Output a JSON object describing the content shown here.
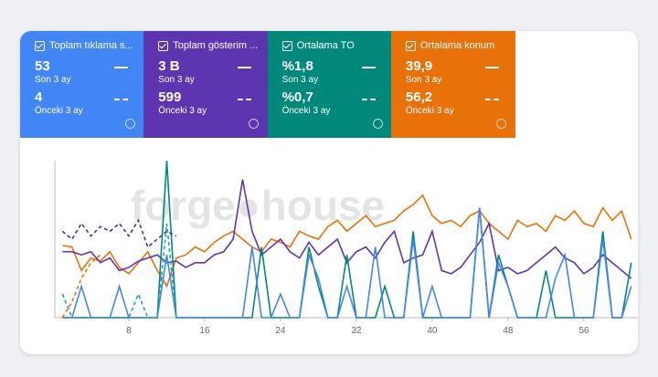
{
  "cards": [
    {
      "title": "Toplam tıklama s...",
      "value": "53",
      "period": "Son 3 ay",
      "prev_value": "4",
      "prev_period": "Önceki 3 ay",
      "color": "#4285f4"
    },
    {
      "title": "Toplam gösterim ...",
      "value": "3 B",
      "period": "Son 3 ay",
      "prev_value": "599",
      "prev_period": "Önceki 3 ay",
      "color": "#5e35b1"
    },
    {
      "title": "Ortalama TO",
      "value": "%1,8",
      "period": "Son 3 ay",
      "prev_value": "%0,7",
      "prev_period": "Önceki 3 ay",
      "color": "#00897b"
    },
    {
      "title": "Ortalama konum",
      "value": "39,9",
      "period": "Son 3 ay",
      "prev_value": "56,2",
      "prev_period": "Önceki 3 ay",
      "color": "#e8710a"
    }
  ],
  "watermark": "forge●house",
  "chart_data": {
    "type": "line",
    "x": [
      1,
      2,
      3,
      4,
      5,
      6,
      7,
      8,
      9,
      10,
      11,
      12,
      13,
      14,
      15,
      16,
      17,
      18,
      19,
      20,
      21,
      22,
      23,
      24,
      25,
      26,
      27,
      28,
      29,
      30,
      31,
      32,
      33,
      34,
      35,
      36,
      37,
      38,
      39,
      40,
      41,
      42,
      43,
      44,
      45,
      46,
      47,
      48,
      49,
      50,
      51,
      52,
      53,
      54,
      55,
      56,
      57,
      58,
      59,
      60,
      61
    ],
    "xlim": [
      0,
      61.7
    ],
    "xticks": [
      8,
      16,
      24,
      32,
      40,
      48,
      56
    ],
    "ylim": [
      0,
      100
    ],
    "series": [
      {
        "color": "#e8710a",
        "values": [
          46,
          45,
          30,
          38,
          36,
          42,
          32,
          28,
          35,
          42,
          30,
          20,
          38,
          40,
          45,
          42,
          48,
          52,
          55,
          50,
          45,
          42,
          50,
          48,
          45,
          55,
          52,
          50,
          58,
          62,
          55,
          60,
          65,
          58,
          60,
          62,
          68,
          72,
          78,
          65,
          60,
          62,
          58,
          65,
          68,
          60,
          55,
          50,
          62,
          58,
          60,
          55,
          65,
          62,
          68,
          60,
          58,
          70,
          62,
          68,
          50
        ]
      },
      {
        "color": "#5e35b1",
        "values": [
          42,
          42,
          40,
          42,
          35,
          38,
          30,
          32,
          36,
          38,
          40,
          35,
          36,
          32,
          35,
          35,
          40,
          42,
          50,
          88,
          55,
          40,
          45,
          50,
          42,
          38,
          48,
          40,
          45,
          50,
          35,
          42,
          45,
          38,
          48,
          55,
          35,
          38,
          40,
          55,
          30,
          28,
          32,
          40,
          48,
          60,
          30,
          32,
          28,
          30,
          35,
          40,
          45,
          38,
          35,
          28,
          32,
          40,
          35,
          30,
          25
        ]
      },
      {
        "color": "#00897b",
        "values": [
          0,
          0,
          0,
          0,
          0,
          0,
          0,
          0,
          0,
          0,
          0,
          100,
          0,
          0,
          0,
          0,
          0,
          0,
          0,
          0,
          0,
          45,
          0,
          0,
          0,
          0,
          45,
          20,
          0,
          0,
          40,
          0,
          0,
          0,
          20,
          0,
          0,
          55,
          0,
          0,
          0,
          0,
          0,
          0,
          70,
          0,
          40,
          20,
          0,
          0,
          0,
          30,
          0,
          0,
          0,
          0,
          0,
          55,
          0,
          0,
          35
        ]
      },
      {
        "color": "#4285f4",
        "values": [
          0,
          0,
          20,
          0,
          0,
          0,
          20,
          0,
          0,
          0,
          0,
          40,
          0,
          0,
          0,
          0,
          0,
          0,
          0,
          0,
          45,
          0,
          0,
          15,
          0,
          0,
          40,
          25,
          0,
          0,
          20,
          0,
          0,
          45,
          0,
          0,
          0,
          50,
          0,
          20,
          0,
          0,
          0,
          0,
          70,
          0,
          35,
          20,
          0,
          0,
          0,
          0,
          25,
          40,
          0,
          0,
          0,
          50,
          0,
          0,
          20
        ]
      },
      {
        "color": "#3f3a9e",
        "dashed": true,
        "x": [
          1,
          2,
          3,
          4,
          5,
          6,
          7,
          8,
          9,
          10,
          11,
          12,
          13
        ],
        "values": [
          55,
          50,
          60,
          52,
          58,
          55,
          60,
          52,
          62,
          45,
          50,
          55,
          52
        ]
      },
      {
        "color": "#e8710a",
        "dashed": true,
        "x": [
          1,
          2,
          3,
          4,
          5
        ],
        "values": [
          0,
          10,
          25,
          35,
          40
        ]
      },
      {
        "color": "#2a9fb0",
        "dashed": true,
        "x": [
          1,
          2,
          3,
          4,
          5,
          6,
          7,
          8,
          9,
          10,
          11,
          12,
          13
        ],
        "values": [
          15,
          0,
          0,
          0,
          0,
          0,
          0,
          0,
          15,
          0,
          0,
          60,
          0
        ]
      }
    ]
  }
}
